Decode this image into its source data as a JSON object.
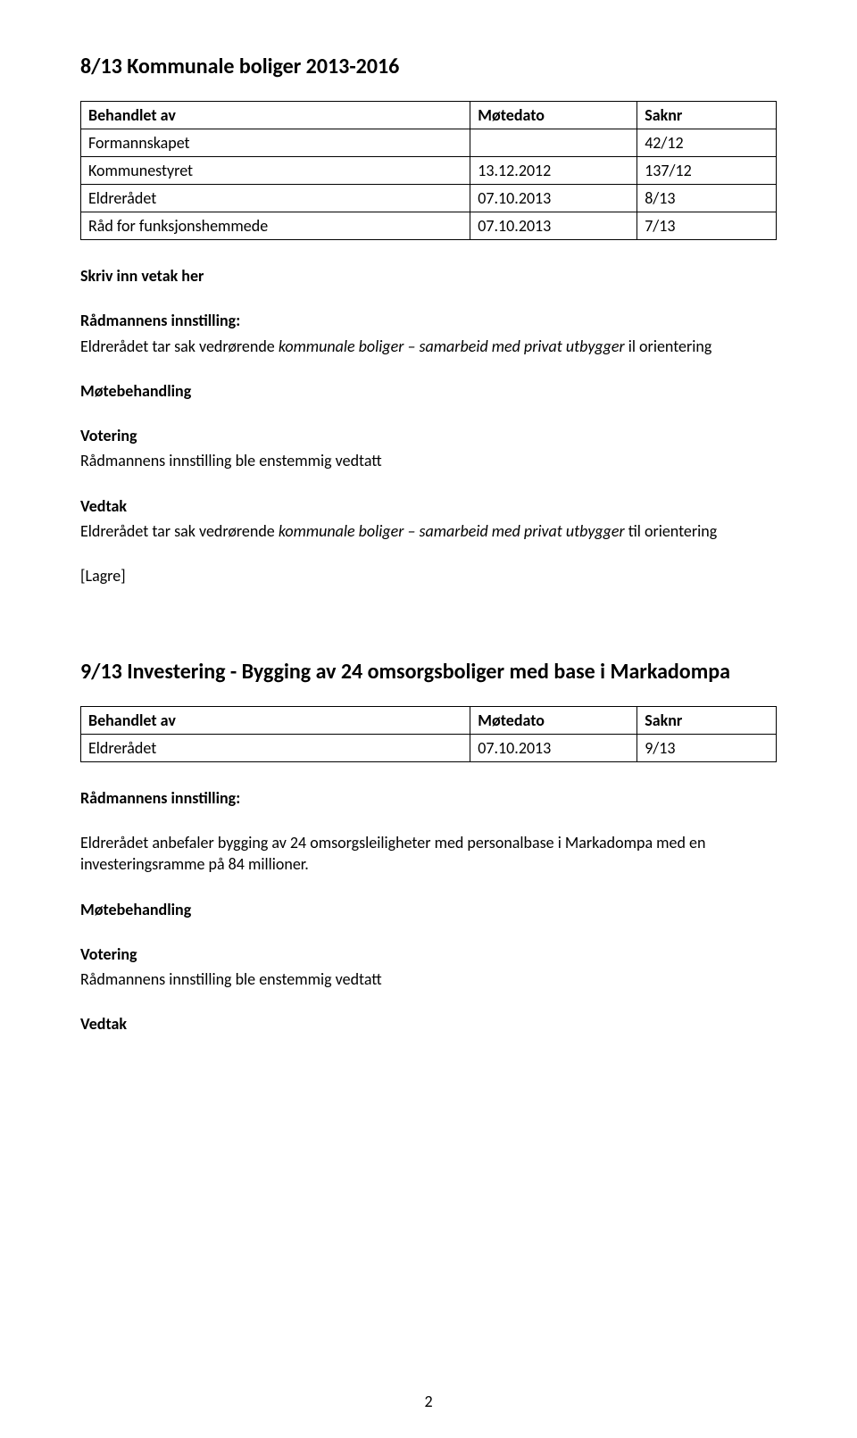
{
  "section1": {
    "title": "8/13 Kommunale boliger 2013-2016",
    "table": {
      "headers": [
        "Behandlet av",
        "Møtedato",
        "Saknr"
      ],
      "rows": [
        [
          "Formannskapet",
          "",
          "42/12"
        ],
        [
          "Kommunestyret",
          "13.12.2012",
          "137/12"
        ],
        [
          "Eldrerådet",
          "07.10.2013",
          "8/13"
        ],
        [
          "Råd for funksjonshemmede",
          "07.10.2013",
          "7/13"
        ]
      ]
    },
    "skriv_inn_vetak": "Skriv inn vetak her",
    "radmannens_label": "Rådmannens innstilling:",
    "radmannens_text_prefix": "Eldrerådet tar sak vedrørende ",
    "radmannens_text_italic": "kommunale boliger – samarbeid med privat utbygger ",
    "radmannens_text_suffix": "il orientering",
    "motebehandling_label": "Møtebehandling",
    "votering_label": "Votering",
    "votering_text": "Rådmannens innstilling ble enstemmig vedtatt",
    "vedtak_label": "Vedtak",
    "vedtak_text_prefix": "Eldrerådet tar sak vedrørende ",
    "vedtak_text_italic": "kommunale boliger – samarbeid med privat utbygger ",
    "vedtak_text_suffix": "til orientering",
    "lagre": "[Lagre]"
  },
  "section2": {
    "title": "9/13 Investering - Bygging av 24 omsorgsboliger med base i Markadompa",
    "table": {
      "headers": [
        "Behandlet av",
        "Møtedato",
        "Saknr"
      ],
      "rows": [
        [
          "Eldrerådet",
          "07.10.2013",
          "9/13"
        ]
      ]
    },
    "radmannens_label": "Rådmannens innstilling:",
    "radmannens_text": "Eldrerådet anbefaler bygging av 24 omsorgsleiligheter med personalbase i Markadompa med en investeringsramme på 84 millioner.",
    "motebehandling_label": "Møtebehandling",
    "votering_label": "Votering",
    "votering_text": "Rådmannens innstilling ble enstemmig vedtatt",
    "vedtak_label": "Vedtak"
  },
  "page_number": "2"
}
